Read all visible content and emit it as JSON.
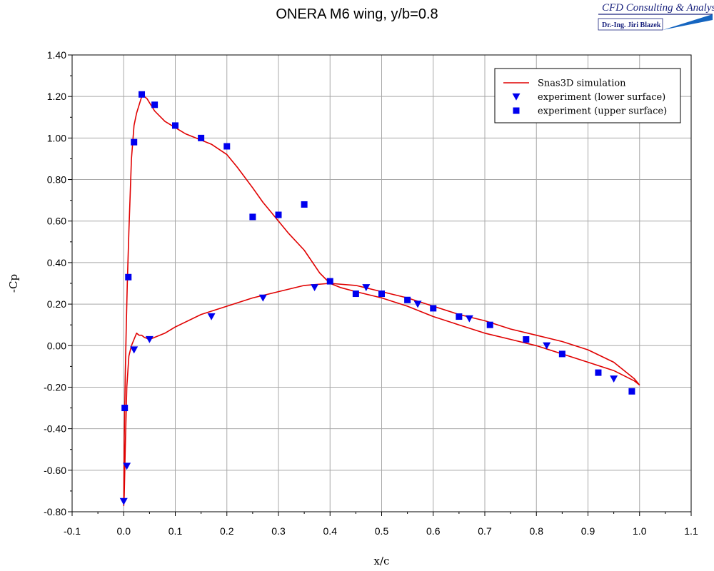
{
  "logo": {
    "company": "CFD Consulting & Analysis",
    "person": "Dr.-Ing. Jiri Blazek"
  },
  "chart_data": {
    "type": "scatter",
    "title": "ONERA M6 wing, y/b=0.8",
    "xlabel": "x/c",
    "ylabel": "-Cp",
    "xlim": [
      -0.1,
      1.1
    ],
    "ylim": [
      -0.8,
      1.4
    ],
    "x_ticks": [
      "-0.1",
      "0.0",
      "0.1",
      "0.2",
      "0.3",
      "0.4",
      "0.5",
      "0.6",
      "0.7",
      "0.8",
      "0.9",
      "1.0",
      "1.1"
    ],
    "y_ticks": [
      "-0.80",
      "-0.60",
      "-0.40",
      "-0.20",
      "0.00",
      "0.20",
      "0.40",
      "0.60",
      "0.80",
      "1.00",
      "1.20",
      "1.40"
    ],
    "grid": true,
    "legend_position": "top-right",
    "colors": {
      "simulation": "#e00000",
      "experiment": "#0000ee",
      "grid": "#a8a8a8"
    },
    "series": [
      {
        "name": "Snas3D simulation",
        "kind": "line",
        "x": [
          1.0,
          0.99,
          0.95,
          0.9,
          0.85,
          0.8,
          0.75,
          0.7,
          0.65,
          0.6,
          0.55,
          0.5,
          0.45,
          0.42,
          0.4,
          0.38,
          0.35,
          0.32,
          0.3,
          0.27,
          0.25,
          0.22,
          0.2,
          0.17,
          0.15,
          0.12,
          0.1,
          0.08,
          0.06,
          0.05,
          0.045,
          0.04,
          0.035,
          0.03,
          0.025,
          0.02,
          0.015,
          0.01,
          0.007,
          0.005,
          0.003,
          0.001,
          0.0,
          0.001,
          0.003,
          0.006,
          0.01,
          0.015,
          0.02,
          0.025,
          0.03,
          0.035,
          0.04,
          0.05,
          0.06,
          0.08,
          0.1,
          0.15,
          0.2,
          0.25,
          0.3,
          0.35,
          0.4,
          0.45,
          0.5,
          0.55,
          0.6,
          0.65,
          0.7,
          0.75,
          0.8,
          0.85,
          0.9,
          0.95,
          0.99,
          1.0
        ],
        "y": [
          -0.19,
          -0.17,
          -0.12,
          -0.08,
          -0.04,
          0.0,
          0.03,
          0.06,
          0.1,
          0.14,
          0.19,
          0.23,
          0.26,
          0.28,
          0.3,
          0.35,
          0.46,
          0.54,
          0.6,
          0.69,
          0.76,
          0.86,
          0.92,
          0.97,
          0.99,
          1.02,
          1.05,
          1.08,
          1.13,
          1.17,
          1.19,
          1.2,
          1.2,
          1.16,
          1.12,
          1.06,
          0.9,
          0.55,
          0.3,
          0.1,
          -0.15,
          -0.45,
          -0.77,
          -0.72,
          -0.5,
          -0.2,
          -0.05,
          0.0,
          0.03,
          0.06,
          0.05,
          0.05,
          0.04,
          0.03,
          0.04,
          0.06,
          0.09,
          0.15,
          0.19,
          0.23,
          0.26,
          0.29,
          0.3,
          0.29,
          0.26,
          0.23,
          0.19,
          0.15,
          0.12,
          0.08,
          0.05,
          0.02,
          -0.02,
          -0.08,
          -0.16,
          -0.19
        ]
      },
      {
        "name": "experiment (lower surface)",
        "kind": "triangle",
        "x": [
          0.0,
          0.006,
          0.02,
          0.05,
          0.17,
          0.27,
          0.37,
          0.47,
          0.57,
          0.67,
          0.82,
          0.95
        ],
        "y": [
          -0.75,
          -0.58,
          -0.02,
          0.03,
          0.14,
          0.23,
          0.28,
          0.28,
          0.2,
          0.13,
          0.0,
          -0.16
        ]
      },
      {
        "name": "experiment (upper surface)",
        "kind": "square",
        "x": [
          0.002,
          0.009,
          0.02,
          0.035,
          0.06,
          0.1,
          0.15,
          0.2,
          0.25,
          0.3,
          0.35,
          0.4,
          0.45,
          0.5,
          0.55,
          0.6,
          0.65,
          0.71,
          0.78,
          0.85,
          0.92,
          0.985
        ],
        "y": [
          -0.3,
          0.33,
          0.98,
          1.21,
          1.16,
          1.06,
          1.0,
          0.96,
          0.62,
          0.63,
          0.68,
          0.31,
          0.25,
          0.25,
          0.22,
          0.18,
          0.14,
          0.1,
          0.03,
          -0.04,
          -0.13,
          -0.22
        ]
      }
    ]
  }
}
